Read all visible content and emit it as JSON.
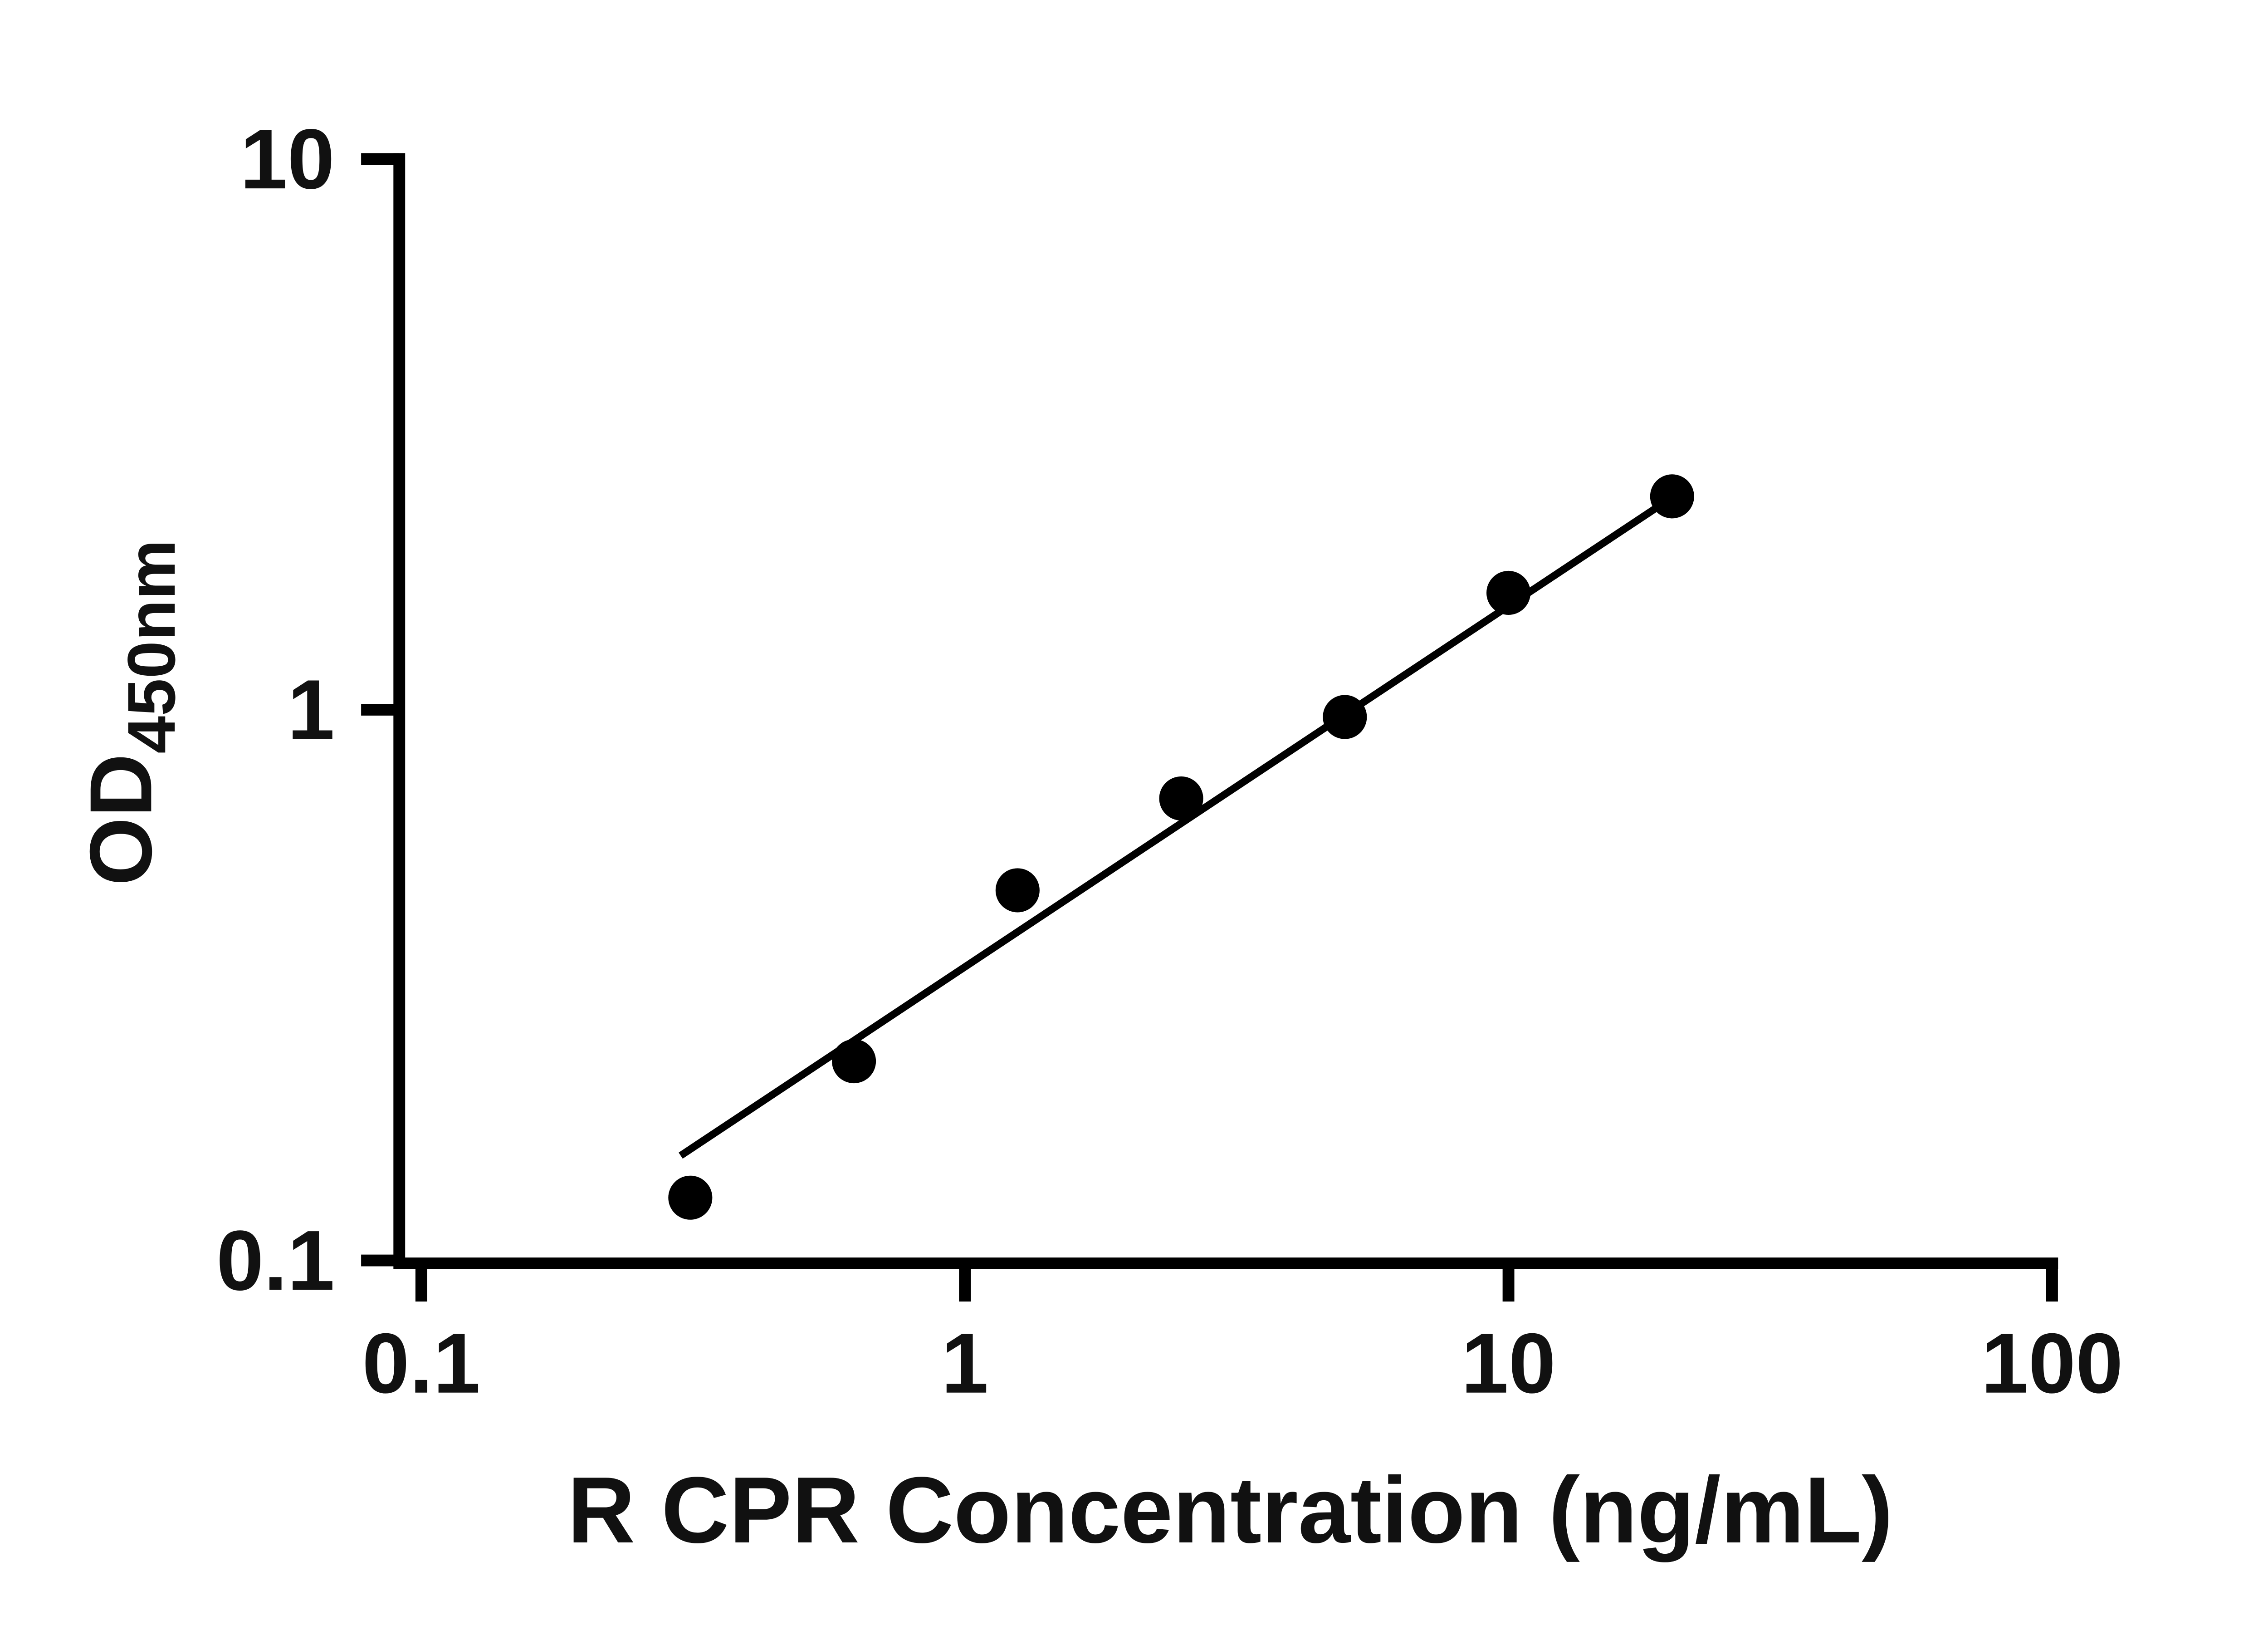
{
  "chart_data": {
    "type": "scatter",
    "title": "",
    "xlabel": "R CPR Concentration (ng/mL)",
    "ylabel": "OD450nm",
    "ylabel_main": "OD",
    "ylabel_sub": "450nm",
    "x_scale": "log",
    "y_scale": "log",
    "x_range": [
      0.1,
      100
    ],
    "y_range": [
      0.1,
      10
    ],
    "x_ticks": [
      0.1,
      1,
      10,
      100
    ],
    "x_tick_labels": [
      "0.1",
      "1",
      "10",
      "100"
    ],
    "y_ticks": [
      0.1,
      1,
      10
    ],
    "y_tick_labels": [
      "0.1",
      "1",
      "10"
    ],
    "grid": false,
    "legend": "none",
    "background": "#ffffff",
    "axis_color": "#000000",
    "marker_color": "#000000",
    "line_color": "#000000",
    "points": [
      {
        "x": 0.3125,
        "y": 0.13
      },
      {
        "x": 0.625,
        "y": 0.23
      },
      {
        "x": 1.25,
        "y": 0.47
      },
      {
        "x": 2.5,
        "y": 0.69
      },
      {
        "x": 5,
        "y": 0.97
      },
      {
        "x": 10,
        "y": 1.63
      },
      {
        "x": 20,
        "y": 2.44
      }
    ],
    "trend_line": {
      "x1": 0.3,
      "y1": 0.155,
      "x2": 20,
      "y2": 2.43
    }
  }
}
